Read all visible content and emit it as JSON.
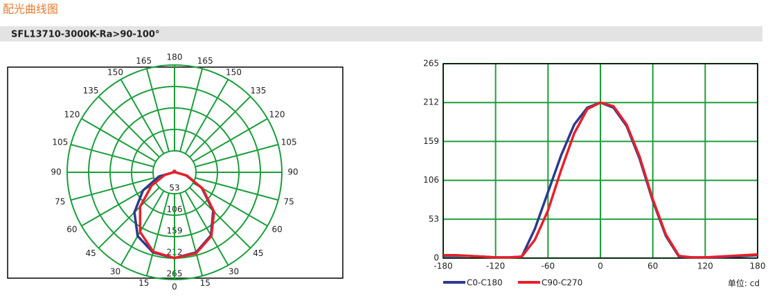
{
  "title": "配光曲线图",
  "subtitle": "SFL13710-3000K-Ra>90-100°",
  "chart_data": [
    {
      "type": "polar",
      "angle_ticks": [
        0,
        15,
        30,
        45,
        60,
        75,
        90,
        105,
        120,
        135,
        150,
        165,
        180
      ],
      "rlim": [
        0,
        265
      ],
      "rticks": [
        53,
        106,
        159,
        212,
        265
      ],
      "grid_color": "#1a9e3a",
      "x": [
        -180,
        -165,
        -150,
        -135,
        -120,
        -105,
        -90,
        -75,
        -60,
        -45,
        -30,
        -15,
        0,
        15,
        30,
        45,
        60,
        75,
        90,
        105,
        120,
        135,
        150,
        165,
        180
      ],
      "series": [
        {
          "name": "C0-C180",
          "color": "#2b3a8f",
          "values": [
            3,
            3,
            3,
            2,
            1,
            1,
            2,
            40,
            90,
            140,
            182,
            205,
            212,
            205,
            180,
            135,
            78,
            30,
            2,
            1,
            1,
            1,
            2,
            3,
            4
          ]
        },
        {
          "name": "C90-C270",
          "color": "#e8202a",
          "values": [
            4,
            4,
            3,
            2,
            1,
            1,
            2,
            25,
            65,
            120,
            170,
            203,
            212,
            207,
            182,
            138,
            80,
            32,
            3,
            1,
            1,
            2,
            3,
            4,
            5
          ]
        }
      ]
    },
    {
      "type": "line",
      "x": [
        -180,
        -165,
        -150,
        -135,
        -120,
        -105,
        -90,
        -75,
        -60,
        -45,
        -30,
        -15,
        0,
        15,
        30,
        45,
        60,
        75,
        90,
        105,
        120,
        135,
        150,
        165,
        180
      ],
      "xlim": [
        -180,
        180
      ],
      "xticks": [
        -180,
        -120,
        -60,
        0,
        60,
        120,
        180
      ],
      "ylim": [
        0,
        265
      ],
      "yticks": [
        0,
        53,
        106,
        159,
        212,
        265
      ],
      "grid": true,
      "grid_color": "#1a9e3a",
      "unit_label": "单位: cd",
      "series": [
        {
          "name": "C0-C180",
          "color": "#2b3a8f",
          "values": [
            3,
            3,
            3,
            2,
            1,
            1,
            2,
            40,
            90,
            140,
            182,
            205,
            212,
            205,
            180,
            135,
            78,
            30,
            2,
            1,
            1,
            1,
            2,
            3,
            4
          ]
        },
        {
          "name": "C90-C270",
          "color": "#e8202a",
          "values": [
            4,
            4,
            3,
            2,
            1,
            1,
            2,
            25,
            65,
            120,
            170,
            203,
            212,
            207,
            182,
            138,
            80,
            32,
            3,
            1,
            1,
            2,
            3,
            4,
            5
          ]
        }
      ]
    }
  ]
}
